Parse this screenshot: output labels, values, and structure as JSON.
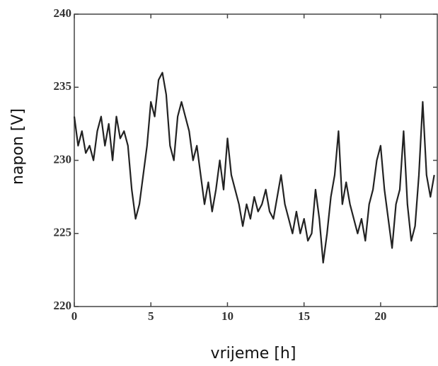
{
  "chart_data": {
    "type": "line",
    "xlabel": "vrijeme [h]",
    "ylabel": "napon [V]",
    "color": "#222222",
    "x": [
      0,
      0.25,
      0.5,
      0.75,
      1,
      1.25,
      1.5,
      1.75,
      2,
      2.25,
      2.5,
      2.75,
      3,
      3.25,
      3.5,
      3.75,
      4,
      4.25,
      4.5,
      4.75,
      5,
      5.25,
      5.5,
      5.75,
      6,
      6.25,
      6.5,
      6.75,
      7,
      7.25,
      7.5,
      7.75,
      8,
      8.25,
      8.5,
      8.75,
      9,
      9.25,
      9.5,
      9.75,
      10,
      10.25,
      10.5,
      10.75,
      11,
      11.25,
      11.5,
      11.75,
      12,
      12.25,
      12.5,
      12.75,
      13,
      13.25,
      13.5,
      13.75,
      14,
      14.25,
      14.5,
      14.75,
      15,
      15.25,
      15.5,
      15.75,
      16,
      16.25,
      16.5,
      16.75,
      17,
      17.25,
      17.5,
      17.75,
      18,
      18.25,
      18.5,
      18.75,
      19,
      19.25,
      19.5,
      19.75,
      20,
      20.25,
      20.5,
      20.75,
      21,
      21.25,
      21.5,
      21.75,
      22,
      22.25,
      22.5,
      22.75,
      23,
      23.25,
      23.5
    ],
    "values": [
      233,
      231,
      232,
      230.5,
      231,
      230,
      232,
      233,
      231,
      232.5,
      230,
      233,
      231.5,
      232,
      231,
      228,
      226,
      227,
      229,
      231,
      234,
      233,
      235.5,
      236,
      234.5,
      231,
      230,
      233,
      234,
      233,
      232,
      230,
      231,
      229,
      227,
      228.5,
      226.5,
      228,
      230,
      228,
      231.5,
      229,
      228,
      227,
      225.5,
      227,
      226,
      227.5,
      226.5,
      227,
      228,
      226.5,
      226,
      227.5,
      229,
      227,
      226,
      225,
      226.5,
      225,
      226,
      224.5,
      225,
      228,
      226,
      223,
      225,
      227.5,
      229,
      232,
      227,
      228.5,
      227,
      226,
      225,
      226,
      224.5,
      227,
      228,
      230,
      231,
      228,
      226,
      224,
      227,
      228,
      232,
      227,
      224.5,
      225.5,
      229,
      234,
      229,
      227.5,
      229
    ],
    "xlim": [
      0,
      23.7
    ],
    "ylim": [
      220,
      240
    ],
    "xticks": [
      0,
      5,
      10,
      15,
      20
    ],
    "yticks": [
      220,
      225,
      230,
      235,
      240
    ]
  }
}
